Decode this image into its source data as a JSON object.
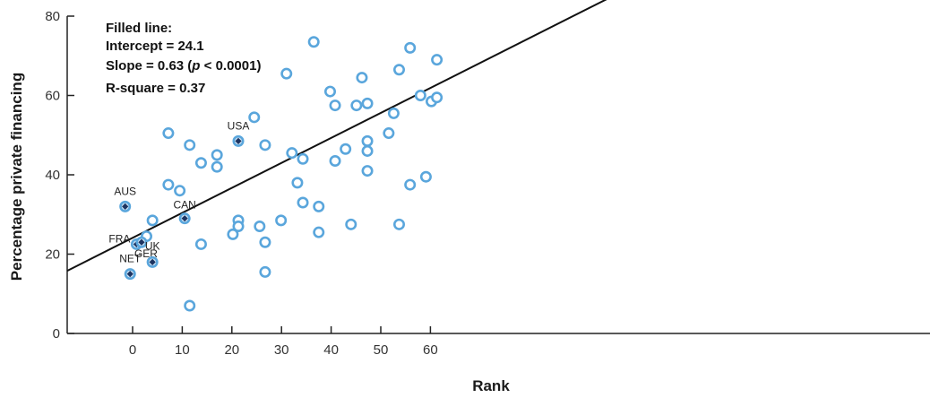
{
  "chart_data": {
    "type": "scatter",
    "xlabel": "Rank",
    "ylabel": "Percentage private financing",
    "xlim": [
      -5,
      64
    ],
    "ylim": [
      0,
      80
    ],
    "xticks": [
      0,
      10,
      20,
      30,
      40,
      50,
      60
    ],
    "yticks": [
      0,
      20,
      40,
      60,
      80
    ],
    "stats": {
      "title": "Filled line:",
      "intercept": "Intercept = 24.1",
      "slope_prefix": "Slope = 0.63 (",
      "slope_p": "p",
      "slope_suffix": " < 0.0001)",
      "rsquare": "R-square = 0.37"
    },
    "fit_line": {
      "intercept": 24.1,
      "slope": 0.63
    },
    "highlighted_points": [
      {
        "label": "AUS",
        "x": -1.5,
        "y": 32.0
      },
      {
        "label": "FRA",
        "x": 0.8,
        "y": 22.5
      },
      {
        "label": "GER",
        "x": 1.8,
        "y": 23.0
      },
      {
        "label": "NET",
        "x": -0.5,
        "y": 15.0
      },
      {
        "label": "UK",
        "x": 4.0,
        "y": 18.0
      },
      {
        "label": "CAN",
        "x": 10.5,
        "y": 29.0
      },
      {
        "label": "USA",
        "x": 21.3,
        "y": 48.5
      }
    ],
    "points": [
      {
        "x": 2.8,
        "y": 24.5
      },
      {
        "x": 4.0,
        "y": 28.5
      },
      {
        "x": 7.2,
        "y": 50.5
      },
      {
        "x": 7.2,
        "y": 37.5
      },
      {
        "x": 9.5,
        "y": 36.0
      },
      {
        "x": 11.5,
        "y": 47.5
      },
      {
        "x": 11.5,
        "y": 7.0
      },
      {
        "x": 13.8,
        "y": 43.0
      },
      {
        "x": 13.8,
        "y": 22.5
      },
      {
        "x": 17.0,
        "y": 45.0
      },
      {
        "x": 17.0,
        "y": 42.0
      },
      {
        "x": 20.2,
        "y": 25.0
      },
      {
        "x": 21.3,
        "y": 28.5
      },
      {
        "x": 21.3,
        "y": 27.0
      },
      {
        "x": 24.5,
        "y": 54.5
      },
      {
        "x": 25.6,
        "y": 27.0
      },
      {
        "x": 26.7,
        "y": 47.5
      },
      {
        "x": 26.7,
        "y": 23.0
      },
      {
        "x": 26.7,
        "y": 15.5
      },
      {
        "x": 29.9,
        "y": 28.5
      },
      {
        "x": 31.0,
        "y": 65.5
      },
      {
        "x": 32.1,
        "y": 45.5
      },
      {
        "x": 33.2,
        "y": 38.0
      },
      {
        "x": 34.3,
        "y": 44.0
      },
      {
        "x": 34.3,
        "y": 33.0
      },
      {
        "x": 36.5,
        "y": 73.5
      },
      {
        "x": 37.5,
        "y": 32.0
      },
      {
        "x": 37.5,
        "y": 25.5
      },
      {
        "x": 39.8,
        "y": 61.0
      },
      {
        "x": 40.8,
        "y": 57.5
      },
      {
        "x": 40.8,
        "y": 43.5
      },
      {
        "x": 42.9,
        "y": 46.5
      },
      {
        "x": 44.0,
        "y": 27.5
      },
      {
        "x": 45.1,
        "y": 57.5
      },
      {
        "x": 46.2,
        "y": 64.5
      },
      {
        "x": 47.3,
        "y": 58.0
      },
      {
        "x": 47.3,
        "y": 48.5
      },
      {
        "x": 47.3,
        "y": 46.0
      },
      {
        "x": 47.3,
        "y": 41.0
      },
      {
        "x": 51.6,
        "y": 50.5
      },
      {
        "x": 52.6,
        "y": 55.5
      },
      {
        "x": 53.7,
        "y": 66.5
      },
      {
        "x": 53.7,
        "y": 27.5
      },
      {
        "x": 55.9,
        "y": 72.0
      },
      {
        "x": 55.9,
        "y": 37.5
      },
      {
        "x": 58.0,
        "y": 60.0
      },
      {
        "x": 59.1,
        "y": 39.5
      },
      {
        "x": 60.2,
        "y": 58.5
      },
      {
        "x": 61.3,
        "y": 69.0
      },
      {
        "x": 61.3,
        "y": 59.5
      }
    ],
    "colors": {
      "marker_stroke": "#5aa6dc",
      "marker_fill_open": "#ffffff",
      "marker_fill_highlight": "#d3e6f6",
      "highlight_diamond": "#1d3461",
      "fit_line": "#111111",
      "axis": "#222222"
    }
  }
}
